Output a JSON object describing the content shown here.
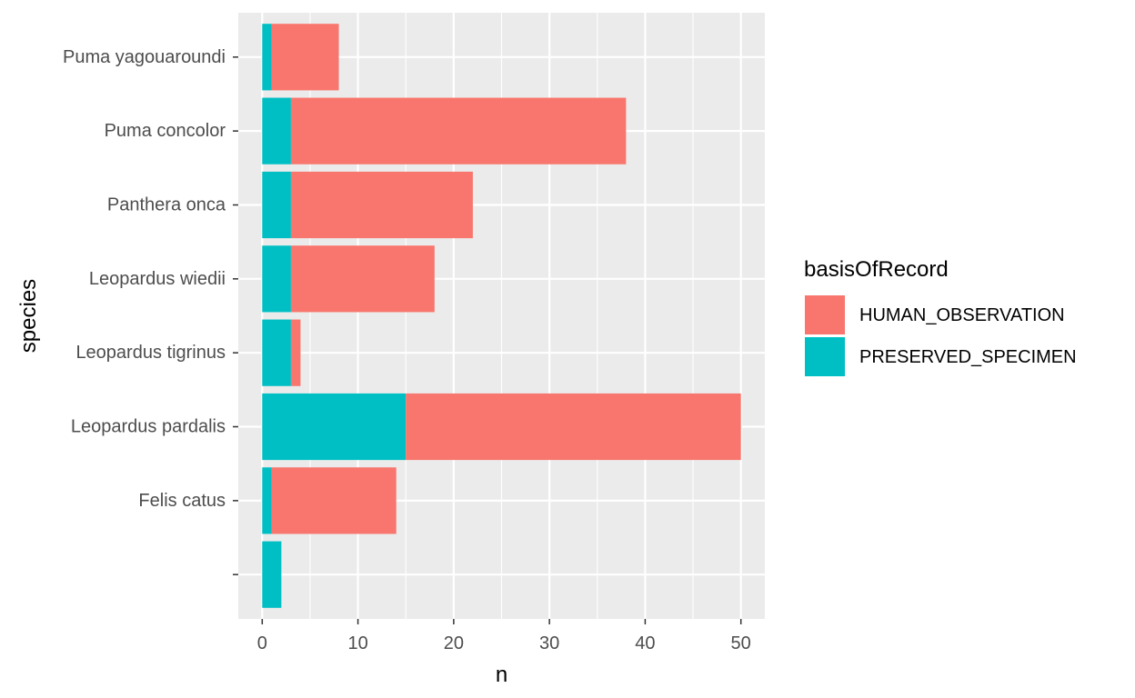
{
  "chart_data": {
    "type": "bar",
    "orientation": "horizontal",
    "stacked": true,
    "xlabel": "n",
    "ylabel": "species",
    "xlim": [
      -2.5,
      52.5
    ],
    "x_ticks": [
      0,
      10,
      20,
      30,
      40,
      50
    ],
    "grid": true,
    "legend_position": "right",
    "categories": [
      "",
      "Felis catus",
      "Leopardus pardalis",
      "Leopardus tigrinus",
      "Leopardus wiedii",
      "Panthera onca",
      "Puma concolor",
      "Puma yagouaroundi"
    ],
    "series": [
      {
        "name": "PRESERVED_SPECIMEN",
        "color": "#00BFC4",
        "values": [
          2,
          1,
          15,
          3,
          3,
          3,
          3,
          1
        ]
      },
      {
        "name": "HUMAN_OBSERVATION",
        "color": "#F8766D",
        "values": [
          0,
          13,
          35,
          1,
          15,
          19,
          35,
          7
        ]
      }
    ],
    "legend": {
      "title": "basisOfRecord",
      "entries": [
        {
          "label": "HUMAN_OBSERVATION",
          "color": "#F8766D"
        },
        {
          "label": "PRESERVED_SPECIMEN",
          "color": "#00BFC4"
        }
      ]
    },
    "panel_background": "#EBEBEB",
    "grid_color": "#FFFFFF"
  }
}
